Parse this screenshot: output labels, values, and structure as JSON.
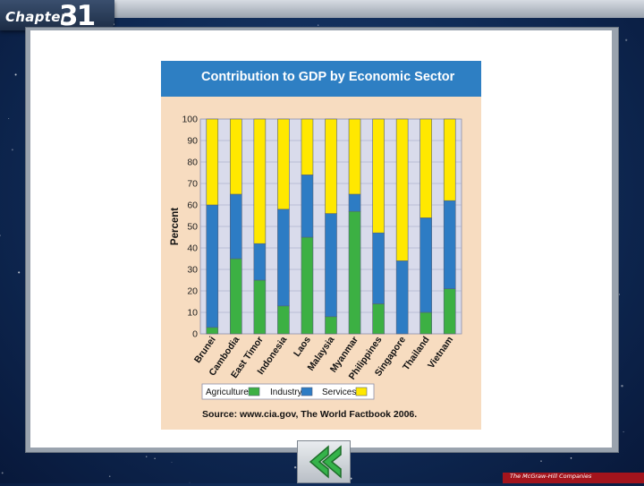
{
  "slide": {
    "chapter_word": "Chapter",
    "chapter_number": "31",
    "publisher": "The McGraw-Hill Companies",
    "back_icon": "double-chevron-left-icon"
  },
  "colors": {
    "agriculture": "#3cb043",
    "industry": "#2d7cc4",
    "services": "#ffe800",
    "title_bar": "#2e7fc3",
    "plot_bg": "#d9dbeb",
    "figure_bg": "#f7dcc0"
  },
  "chart_data": {
    "type": "bar",
    "stacked": true,
    "title": "Contribution to GDP by Economic Sector",
    "ylabel": "Percent",
    "xlabel": "",
    "ylim": [
      0,
      100
    ],
    "yticks": [
      0,
      10,
      20,
      30,
      40,
      50,
      60,
      70,
      80,
      90,
      100
    ],
    "grid": true,
    "legend_position": "bottom-left",
    "categories": [
      "Brunei",
      "Cambodia",
      "East Timor",
      "Indonesia",
      "Laos",
      "Malaysia",
      "Myanmar",
      "Philippines",
      "Singapore",
      "Thailand",
      "Vietnam"
    ],
    "series": [
      {
        "name": "Agriculture",
        "values": [
          3,
          35,
          25,
          13,
          45,
          8,
          57,
          14,
          0,
          10,
          21
        ]
      },
      {
        "name": "Industry",
        "values": [
          57,
          30,
          17,
          45,
          29,
          48,
          8,
          33,
          34,
          44,
          41
        ]
      },
      {
        "name": "Services",
        "values": [
          40,
          35,
          58,
          42,
          26,
          44,
          35,
          53,
          66,
          46,
          38
        ]
      }
    ],
    "source": "Source: www.cia.gov, The World Factbook 2006."
  }
}
